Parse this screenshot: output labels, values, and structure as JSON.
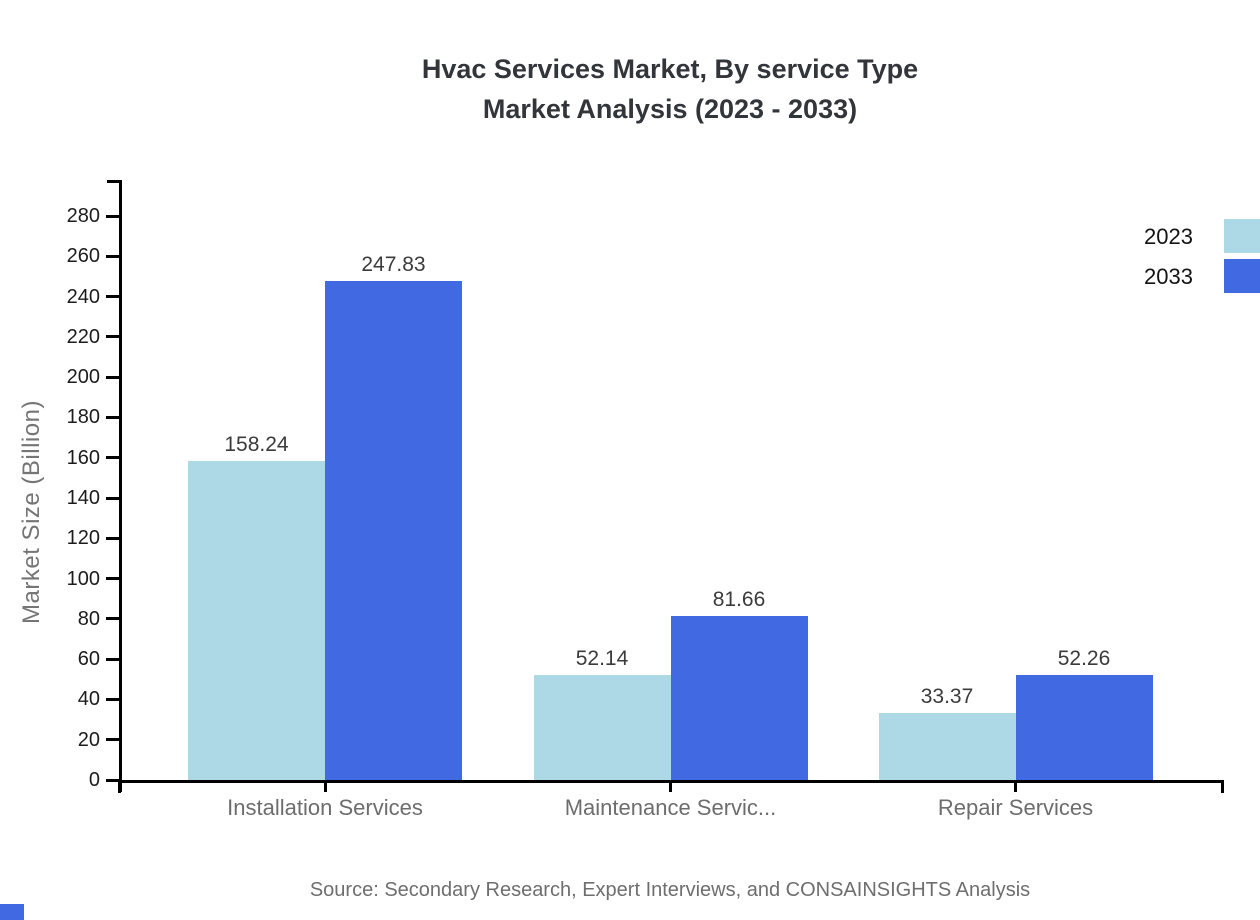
{
  "title": {
    "line1": "Hvac Services Market, By service Type",
    "line2": "Market Analysis (2023 - 2033)"
  },
  "chart_data": {
    "type": "bar",
    "title": "Hvac Services Market, By service Type Market Analysis (2023 - 2033)",
    "categories": [
      "Installation Services",
      "Maintenance Servic...",
      "Repair Services"
    ],
    "series": [
      {
        "name": "2023",
        "color": "#add8e6",
        "values": [
          158.24,
          52.14,
          33.37
        ]
      },
      {
        "name": "2033",
        "color": "#4169e1",
        "values": [
          247.83,
          81.66,
          52.26
        ]
      }
    ],
    "value_labels": [
      "158.24",
      "247.83",
      "52.14",
      "81.66",
      "33.37",
      "52.26"
    ],
    "xlabel": "",
    "ylabel": "Market Size (Billion)",
    "ylim": [
      0,
      298
    ],
    "ytick_step": 20,
    "yticks": [
      0,
      20,
      40,
      60,
      80,
      100,
      120,
      140,
      160,
      180,
      200,
      220,
      240,
      260,
      280
    ],
    "grid": "off",
    "legend_position": "top-right"
  },
  "legend": {
    "items": [
      {
        "label": "2023",
        "color": "#add8e6"
      },
      {
        "label": "2033",
        "color": "#4169e1"
      }
    ]
  },
  "source": "Source: Secondary Research, Expert Interviews, and CONSAINSIGHTS Analysis",
  "artifacts": {
    "corner_square_color": "#4169e1"
  }
}
